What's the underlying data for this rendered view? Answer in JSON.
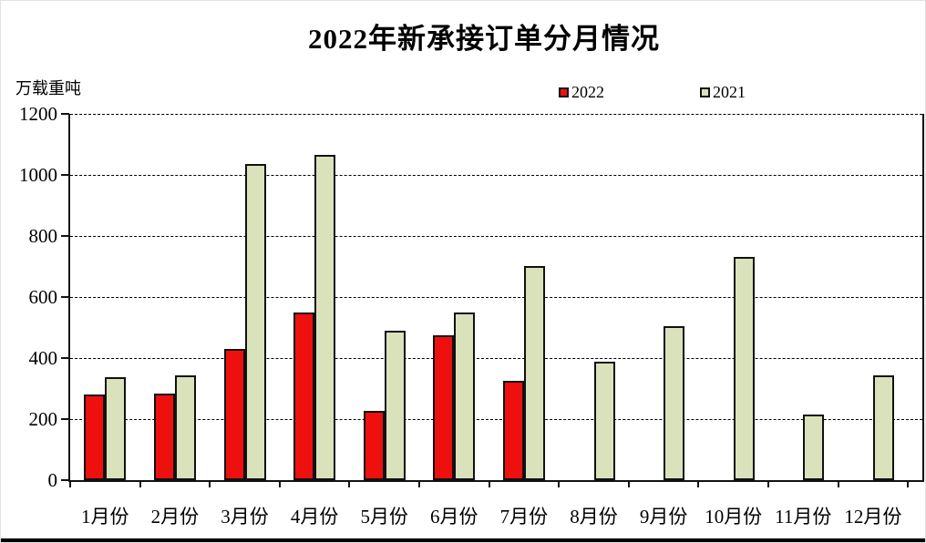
{
  "title": "2022年新承接订单分月情况",
  "unit_label": "万载重吨",
  "legend": {
    "item_2022": "2022",
    "item_2021": "2021"
  },
  "colors": {
    "series_2022": "#ee0f0f",
    "series_2021": "#d9e2bb",
    "bar_border": "#111111"
  },
  "chart_data": {
    "type": "bar",
    "title": "2022年新承接订单分月情况",
    "ylabel": "万载重吨",
    "xlabel": "",
    "categories": [
      "1月份",
      "2月份",
      "3月份",
      "4月份",
      "5月份",
      "6月份",
      "7月份",
      "8月份",
      "9月份",
      "10月份",
      "11月份",
      "12月份"
    ],
    "series": [
      {
        "name": "2022",
        "color": "#ee0f0f",
        "values": [
          280,
          283,
          430,
          548,
          228,
          475,
          326,
          null,
          null,
          null,
          null,
          null
        ]
      },
      {
        "name": "2021",
        "color": "#d9e2bb",
        "values": [
          338,
          342,
          1035,
          1065,
          489,
          550,
          700,
          389,
          503,
          731,
          215,
          342
        ]
      }
    ],
    "ylim": [
      0,
      1200
    ],
    "ytick_interval": 200,
    "yticks": [
      "0",
      "200",
      "400",
      "600",
      "800",
      "1000",
      "1200"
    ],
    "grid": true,
    "gridline_style": "dashed",
    "legend_position": "top"
  }
}
